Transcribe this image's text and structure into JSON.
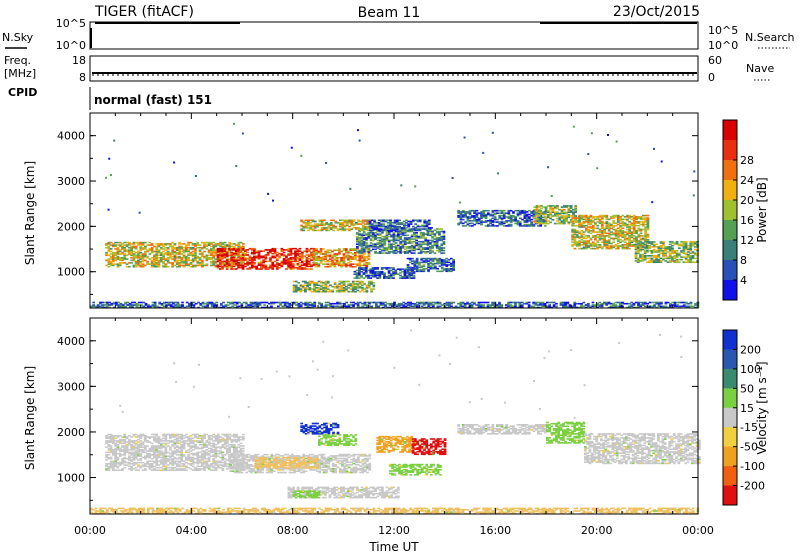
{
  "header": {
    "radar": "TIGER (fitACF)",
    "beam": "Beam 11",
    "date": "23/Oct/2015"
  },
  "noise_panel": {
    "left_label": "N.Sky",
    "right_label": "N.Search",
    "left_ticks": [
      "10^5",
      "10^0"
    ],
    "right_ticks": [
      "10^5",
      "10^0"
    ]
  },
  "freq_panel": {
    "left_label_1": "Freq.",
    "left_label_2": "[MHz]",
    "right_label": "Nave",
    "left_ticks": [
      "18",
      "8"
    ],
    "right_ticks": [
      "60",
      "0"
    ]
  },
  "cpid_panel": {
    "label": "CPID",
    "text": "normal (fast) 151"
  },
  "chart_data": [
    {
      "type": "heatmap",
      "panel": "power",
      "ylabel": "Slant Range [km]",
      "ylim": [
        200,
        4500
      ],
      "yticks": [
        "1000",
        "2000",
        "3000",
        "4000"
      ],
      "xlim": [
        0,
        24
      ],
      "colorbar": {
        "label": "Power [dB]",
        "ticks": [
          "4",
          "8",
          "12",
          "16",
          "20",
          "24",
          "28"
        ],
        "colors": [
          "#1010e8",
          "#2850b8",
          "#3a8078",
          "#55a055",
          "#a0c030",
          "#f0b010",
          "#f07010",
          "#e83010",
          "#d80000"
        ]
      },
      "bands": [
        {
          "t0": 0.6,
          "t1": 6.0,
          "r0": 1100,
          "r1": 1650,
          "level": 0.55
        },
        {
          "t0": 5.0,
          "t1": 8.8,
          "r0": 1050,
          "r1": 1500,
          "level": 0.85
        },
        {
          "t0": 8.8,
          "t1": 11.0,
          "r0": 1100,
          "r1": 1500,
          "level": 0.65
        },
        {
          "t0": 10.5,
          "t1": 14.0,
          "r0": 1400,
          "r1": 1950,
          "level": 0.3
        },
        {
          "t0": 8.3,
          "t1": 11.0,
          "r0": 1900,
          "r1": 2150,
          "level": 0.55
        },
        {
          "t0": 11.0,
          "t1": 13.5,
          "r0": 1900,
          "r1": 2150,
          "level": 0.2
        },
        {
          "t0": 8.0,
          "t1": 11.2,
          "r0": 550,
          "r1": 800,
          "level": 0.45
        },
        {
          "t0": 10.4,
          "t1": 12.8,
          "r0": 850,
          "r1": 1100,
          "level": 0.2
        },
        {
          "t0": 12.5,
          "t1": 14.3,
          "r0": 1000,
          "r1": 1300,
          "level": 0.25
        },
        {
          "t0": 14.5,
          "t1": 18.0,
          "r0": 2000,
          "r1": 2350,
          "level": 0.2
        },
        {
          "t0": 17.5,
          "t1": 19.2,
          "r0": 2050,
          "r1": 2450,
          "level": 0.45
        },
        {
          "t0": 19.0,
          "t1": 22.0,
          "r0": 1500,
          "r1": 2250,
          "level": 0.55
        },
        {
          "t0": 21.5,
          "t1": 24.0,
          "r0": 1200,
          "r1": 1650,
          "level": 0.45
        },
        {
          "t0": 0.0,
          "t1": 24.0,
          "r0": 200,
          "r1": 330,
          "level": 0.2
        }
      ]
    },
    {
      "type": "heatmap",
      "panel": "velocity",
      "ylabel": "Slant Range [km]",
      "ylim": [
        200,
        4500
      ],
      "yticks": [
        "1000",
        "2000",
        "3000",
        "4000"
      ],
      "xlim": [
        0,
        24
      ],
      "xticks": [
        "00:00",
        "04:00",
        "08:00",
        "12:00",
        "16:00",
        "20:00",
        "00:00"
      ],
      "xlabel": "Time UT",
      "colorbar": {
        "label": "Velocity [m s⁻¹]",
        "ticks": [
          "200",
          "100",
          "50",
          "15",
          "-15",
          "-50",
          "-100",
          "-200"
        ],
        "colors": [
          "#1030d0",
          "#2a58b0",
          "#3a8a70",
          "#7ad040",
          "#c8c8c8",
          "#f0d040",
          "#f0a020",
          "#f06010",
          "#e01010"
        ]
      },
      "bands": [
        {
          "t0": 0.6,
          "t1": 6.0,
          "r0": 1150,
          "r1": 1950,
          "color": "#c8c8c8"
        },
        {
          "t0": 5.5,
          "t1": 11.0,
          "r0": 1100,
          "r1": 1500,
          "color": "#c8c8c8"
        },
        {
          "t0": 6.5,
          "t1": 9.0,
          "r0": 1200,
          "r1": 1450,
          "color": "#f0c060"
        },
        {
          "t0": 8.3,
          "t1": 9.8,
          "r0": 1950,
          "r1": 2200,
          "color": "#1030d0"
        },
        {
          "t0": 9.0,
          "t1": 10.5,
          "r0": 1700,
          "r1": 1950,
          "color": "#7ad040"
        },
        {
          "t0": 11.3,
          "t1": 12.8,
          "r0": 1550,
          "r1": 1900,
          "color": "#f0a020"
        },
        {
          "t0": 12.7,
          "t1": 14.0,
          "r0": 1500,
          "r1": 1850,
          "color": "#e01010"
        },
        {
          "t0": 11.8,
          "t1": 13.8,
          "r0": 1050,
          "r1": 1300,
          "color": "#7ad040"
        },
        {
          "t0": 7.8,
          "t1": 12.2,
          "r0": 550,
          "r1": 800,
          "color": "#c8c8c8"
        },
        {
          "t0": 8.0,
          "t1": 9.0,
          "r0": 550,
          "r1": 700,
          "color": "#7ad040"
        },
        {
          "t0": 14.5,
          "t1": 18.0,
          "r0": 1950,
          "r1": 2150,
          "color": "#c8c8c8"
        },
        {
          "t0": 18.0,
          "t1": 19.5,
          "r0": 1750,
          "r1": 2200,
          "color": "#7ad040"
        },
        {
          "t0": 19.5,
          "t1": 24.0,
          "r0": 1300,
          "r1": 1950,
          "color": "#c8c8c8"
        },
        {
          "t0": 0.0,
          "t1": 24.0,
          "r0": 200,
          "r1": 330,
          "color": "#f0c060"
        }
      ]
    }
  ]
}
